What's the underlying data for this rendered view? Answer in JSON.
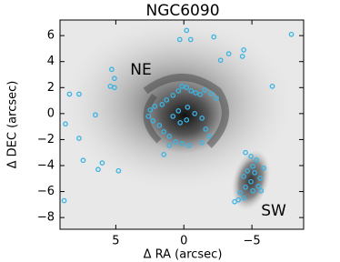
{
  "chart_data": {
    "type": "scatter",
    "title": "NGC6090",
    "xlabel": "Δ RA (arcsec)",
    "ylabel": "Δ DEC (arcsec)",
    "annotations": [
      "NE",
      "SW"
    ],
    "color": "#3ab4e4",
    "xlim": [
      9.1,
      -8.8
    ],
    "ylim": [
      -8.9,
      7.2
    ],
    "xticks": [
      5,
      0,
      {
        "value": -5,
        "label": "−5"
      }
    ],
    "yticks": [
      6,
      4,
      2,
      0,
      {
        "value": -2,
        "label": "−2"
      },
      {
        "value": -4,
        "label": "−4"
      },
      {
        "value": -6,
        "label": "−6"
      },
      {
        "value": -8,
        "label": "−8"
      }
    ],
    "x": [
      -7.9,
      -0.2,
      -0.5,
      0.3,
      -2.2,
      -4.4,
      -4.3,
      -3.3,
      -2.7,
      5.3,
      5.1,
      5.4,
      5.1,
      8.4,
      7.7,
      6.5,
      8.7,
      7.7,
      7.4,
      6.0,
      4.8,
      6.3,
      -6.5,
      8.8,
      0.13,
      -0.2,
      -0.53,
      -0.87,
      -1.2,
      -1.53,
      -2.0,
      -2.4,
      0.4,
      0.8,
      1.27,
      1.6,
      2.13,
      2.47,
      2.6,
      2.27,
      1.8,
      1.47,
      1.07,
      0.6,
      0.13,
      -0.4,
      0.8,
      0.4,
      -0.27,
      -0.8,
      -1.33,
      -1.6,
      -1.87,
      -1.33,
      -0.2,
      0.27,
      1.07,
      1.47,
      -4.53,
      -4.93,
      -5.33,
      -5.07,
      -4.67,
      -4.4,
      -5.2,
      -5.6,
      -4.93,
      -4.53,
      -4.13,
      -4.0,
      -4.4,
      -3.73,
      -5.47,
      -5.87,
      -5.67,
      -5.07
    ],
    "values": [
      6.1,
      6.4,
      5.7,
      5.7,
      5.9,
      4.9,
      4.4,
      4.6,
      4.1,
      3.4,
      2.7,
      2.1,
      2.0,
      1.5,
      1.5,
      -0.1,
      -0.8,
      -1.9,
      -3.6,
      -3.8,
      -4.4,
      -4.3,
      2.1,
      -6.7,
      2.1,
      2.0,
      1.75,
      1.6,
      1.47,
      1.82,
      1.54,
      1.19,
      1.75,
      1.4,
      1.05,
      0.7,
      0.56,
      0.28,
      -0.21,
      -0.56,
      -0.91,
      -1.4,
      -1.75,
      -2.17,
      -2.31,
      -2.45,
      -0.21,
      0.21,
      0.49,
      0,
      -0.35,
      -1.19,
      -1.75,
      -2.24,
      -0.49,
      -0.7,
      -2.45,
      -3.15,
      -3.0,
      -3.29,
      -3.57,
      -4.06,
      -4.41,
      -4.83,
      -4.55,
      -4.97,
      -5.24,
      -5.66,
      -6.08,
      -6.64,
      -6.5,
      -6.78,
      -5.59,
      -4.2,
      -5.94,
      -5.94
    ]
  }
}
